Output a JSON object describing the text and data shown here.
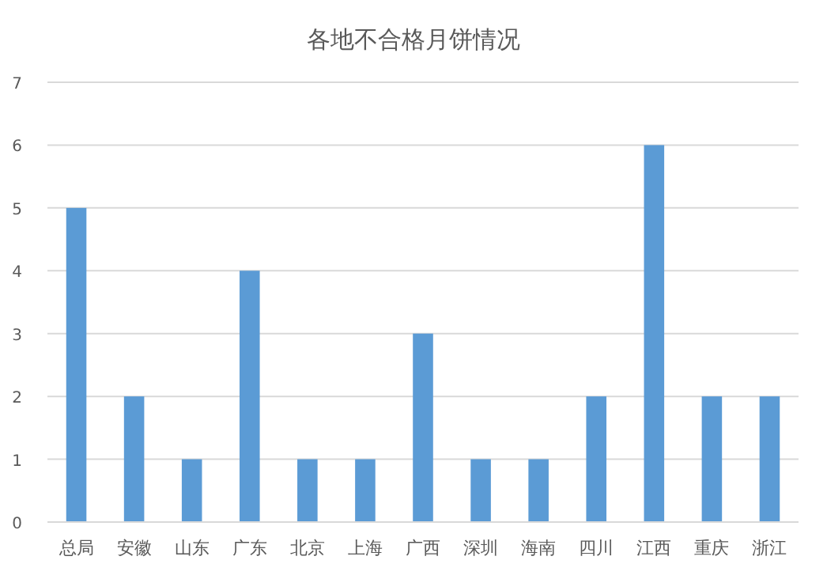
{
  "chart_data": {
    "type": "bar",
    "title": "各地不合格月饼情况",
    "categories": [
      "总局",
      "安徽",
      "山东",
      "广东",
      "北京",
      "上海",
      "广西",
      "深圳",
      "海南",
      "四川",
      "江西",
      "重庆",
      "浙江"
    ],
    "values": [
      5,
      2,
      1,
      4,
      1,
      1,
      3,
      1,
      1,
      2,
      6,
      2,
      2
    ],
    "color": "#5b9bd5",
    "ylim": [
      0,
      7
    ],
    "yticks": [
      0,
      1,
      2,
      3,
      4,
      5,
      6,
      7
    ],
    "grid": "y"
  }
}
